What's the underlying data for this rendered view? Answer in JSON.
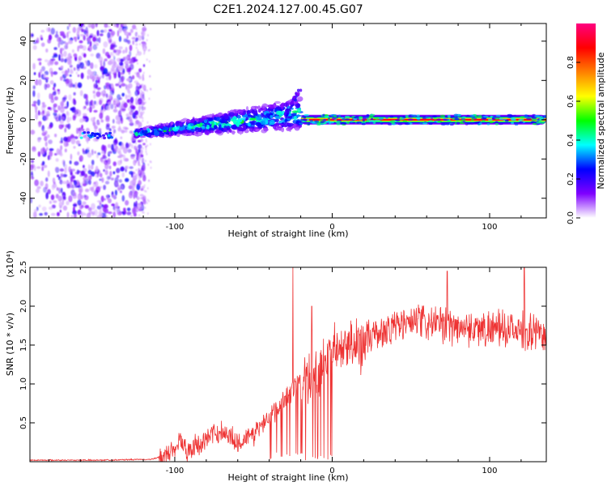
{
  "title": "C2E1.2024.127.00.45.G07",
  "chart_data": [
    {
      "type": "heatmap",
      "xlabel": "Height of straight line (km)",
      "ylabel": "Frequency (Hz)",
      "xlim": [
        -192,
        136
      ],
      "ylim": [
        -50,
        49
      ],
      "x_ticks": [
        -100,
        0,
        100
      ],
      "y_ticks": [
        -40,
        -20,
        0,
        20,
        40
      ],
      "grid": false,
      "colorbar": {
        "label": "Normalized spectral amplitude",
        "range": [
          0,
          1
        ],
        "ticks": [
          0.0,
          0.2,
          0.4,
          0.6,
          0.8
        ],
        "colors": [
          "#ffffff",
          "#7f00ff",
          "#0000ff",
          "#00ffff",
          "#00ff00",
          "#ffff00",
          "#ff8000",
          "#ff0000",
          "#ff0080"
        ]
      },
      "features": [
        {
          "from_x": -192,
          "to_x": -125,
          "description": "broadband noise, amplitude ~0.05-0.25"
        },
        {
          "from_x": -125,
          "to_x": -20,
          "freq_start": -7,
          "freq_end": 3,
          "peak_amplitude": 0.5
        },
        {
          "from_x": -20,
          "to_x": 136,
          "freq": 0,
          "peak_amplitude": 0.9
        }
      ]
    },
    {
      "type": "line",
      "xlabel": "Height of straight line (km)",
      "ylabel": "SNR (10 * v/v)",
      "y_multiplier": "(x10⁴)",
      "xlim": [
        -192,
        136
      ],
      "ylim": [
        0,
        2.5
      ],
      "x_ticks": [
        -100,
        0,
        100
      ],
      "y_ticks": [
        0.5,
        1.0,
        1.5,
        2.0,
        2.5
      ],
      "grid": false,
      "series": [
        {
          "color": "#ee3333",
          "profile": [
            [
              -192,
              0.02
            ],
            [
              -150,
              0.02
            ],
            [
              -115,
              0.03
            ],
            [
              -105,
              0.08
            ],
            [
              -100,
              0.18
            ],
            [
              -97,
              0.3
            ],
            [
              -93,
              0.15
            ],
            [
              -85,
              0.2
            ],
            [
              -80,
              0.3
            ],
            [
              -70,
              0.4
            ],
            [
              -60,
              0.25
            ],
            [
              -50,
              0.35
            ],
            [
              -42,
              0.55
            ],
            [
              -35,
              0.7
            ],
            [
              -28,
              0.9
            ],
            [
              -22,
              1.0
            ],
            [
              -15,
              1.1
            ],
            [
              -10,
              1.2
            ],
            [
              -5,
              1.3
            ],
            [
              0,
              1.4
            ],
            [
              10,
              1.45
            ],
            [
              20,
              1.55
            ],
            [
              30,
              1.65
            ],
            [
              40,
              1.75
            ],
            [
              55,
              1.8
            ],
            [
              70,
              1.75
            ],
            [
              90,
              1.72
            ],
            [
              110,
              1.7
            ],
            [
              136,
              1.65
            ]
          ],
          "spikes": [
            [
              -25,
              2.5
            ],
            [
              -13,
              2.0
            ],
            [
              73,
              2.45
            ],
            [
              122,
              2.5
            ]
          ]
        }
      ]
    }
  ]
}
